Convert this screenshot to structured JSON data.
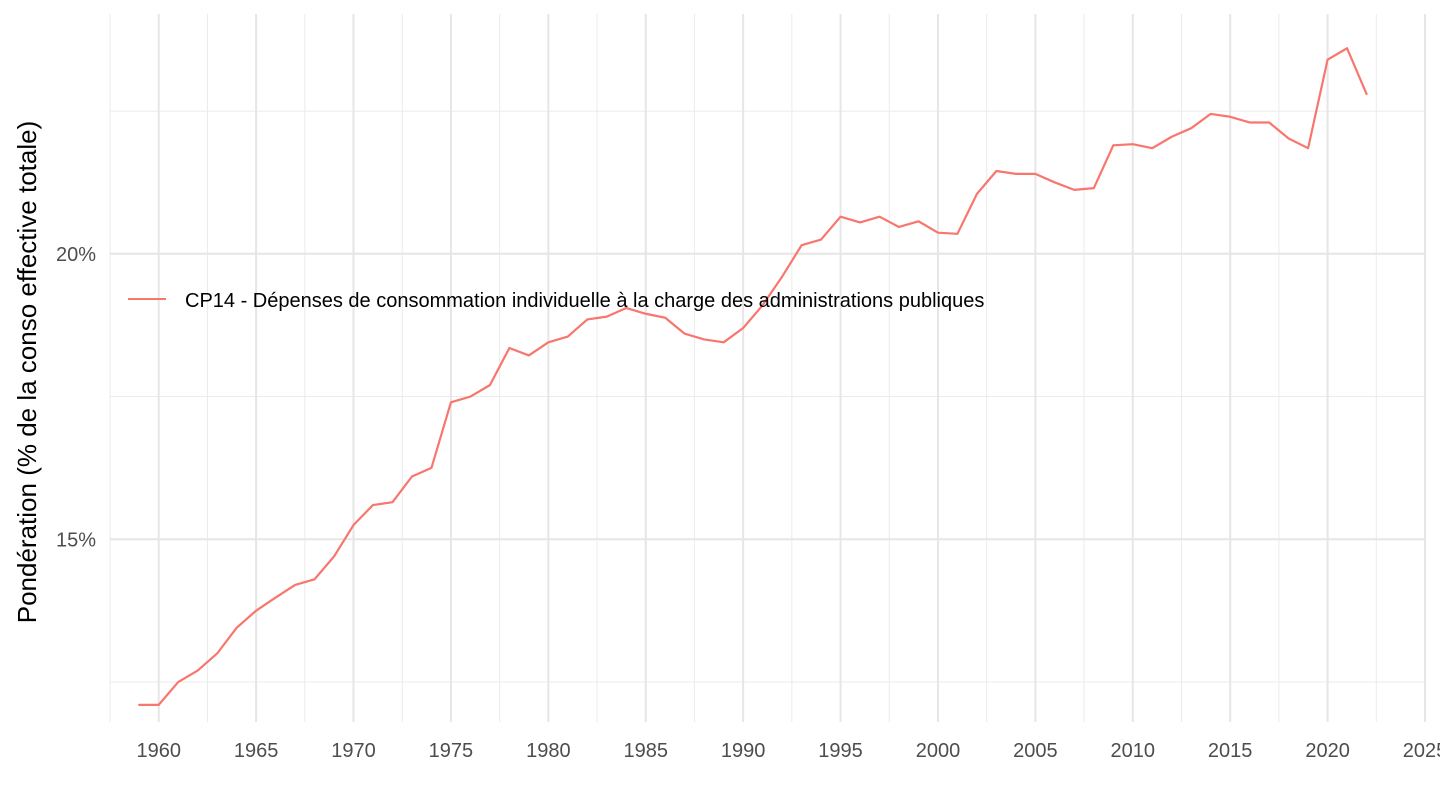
{
  "chart_data": {
    "type": "line",
    "ylabel": "Pondération (% de la conso effective totale)",
    "xlabel": "",
    "xlim": [
      1957.5,
      2025
    ],
    "ylim": [
      11.8,
      24.2
    ],
    "x_ticks": [
      1960,
      1965,
      1970,
      1975,
      1980,
      1985,
      1990,
      1995,
      2000,
      2005,
      2010,
      2015,
      2020,
      2025
    ],
    "x_tick_labels": [
      "1960",
      "1965",
      "1970",
      "1975",
      "1980",
      "1985",
      "1990",
      "1995",
      "2000",
      "2005",
      "2010",
      "2015",
      "2020",
      "2025"
    ],
    "y_ticks": [
      15,
      20
    ],
    "y_tick_labels": [
      "15%",
      "20%"
    ],
    "y_minor_ticks": [
      12.5,
      17.5,
      22.5
    ],
    "grid": true,
    "legend_position": "top-left",
    "series": [
      {
        "name": "CP14 - Dépenses de consommation individuelle à la charge des administrations publiques",
        "color": "#F8766D",
        "x": [
          1959,
          1960,
          1961,
          1962,
          1963,
          1964,
          1965,
          1966,
          1967,
          1968,
          1969,
          1970,
          1971,
          1972,
          1973,
          1974,
          1975,
          1976,
          1977,
          1978,
          1979,
          1980,
          1981,
          1982,
          1983,
          1984,
          1985,
          1986,
          1987,
          1988,
          1989,
          1990,
          1991,
          1992,
          1993,
          1994,
          1995,
          1996,
          1997,
          1998,
          1999,
          2000,
          2001,
          2002,
          2003,
          2004,
          2005,
          2006,
          2007,
          2008,
          2009,
          2010,
          2011,
          2012,
          2013,
          2014,
          2015,
          2016,
          2017,
          2018,
          2019,
          2020,
          2021,
          2022
        ],
        "y": [
          12.1,
          12.1,
          12.5,
          12.7,
          13.0,
          13.45,
          13.75,
          13.98,
          14.2,
          14.3,
          14.7,
          15.25,
          15.6,
          15.65,
          16.1,
          16.25,
          17.4,
          17.5,
          17.7,
          18.35,
          18.22,
          18.45,
          18.55,
          18.85,
          18.9,
          19.05,
          18.95,
          18.88,
          18.6,
          18.5,
          18.45,
          18.7,
          19.1,
          19.6,
          20.15,
          20.25,
          20.65,
          20.55,
          20.65,
          20.47,
          20.57,
          20.37,
          20.35,
          21.05,
          21.45,
          21.4,
          21.4,
          21.25,
          21.12,
          21.15,
          21.9,
          21.92,
          21.85,
          22.05,
          22.2,
          22.45,
          22.4,
          22.3,
          22.3,
          22.02,
          21.85,
          23.4,
          23.6,
          22.8
        ]
      }
    ]
  }
}
